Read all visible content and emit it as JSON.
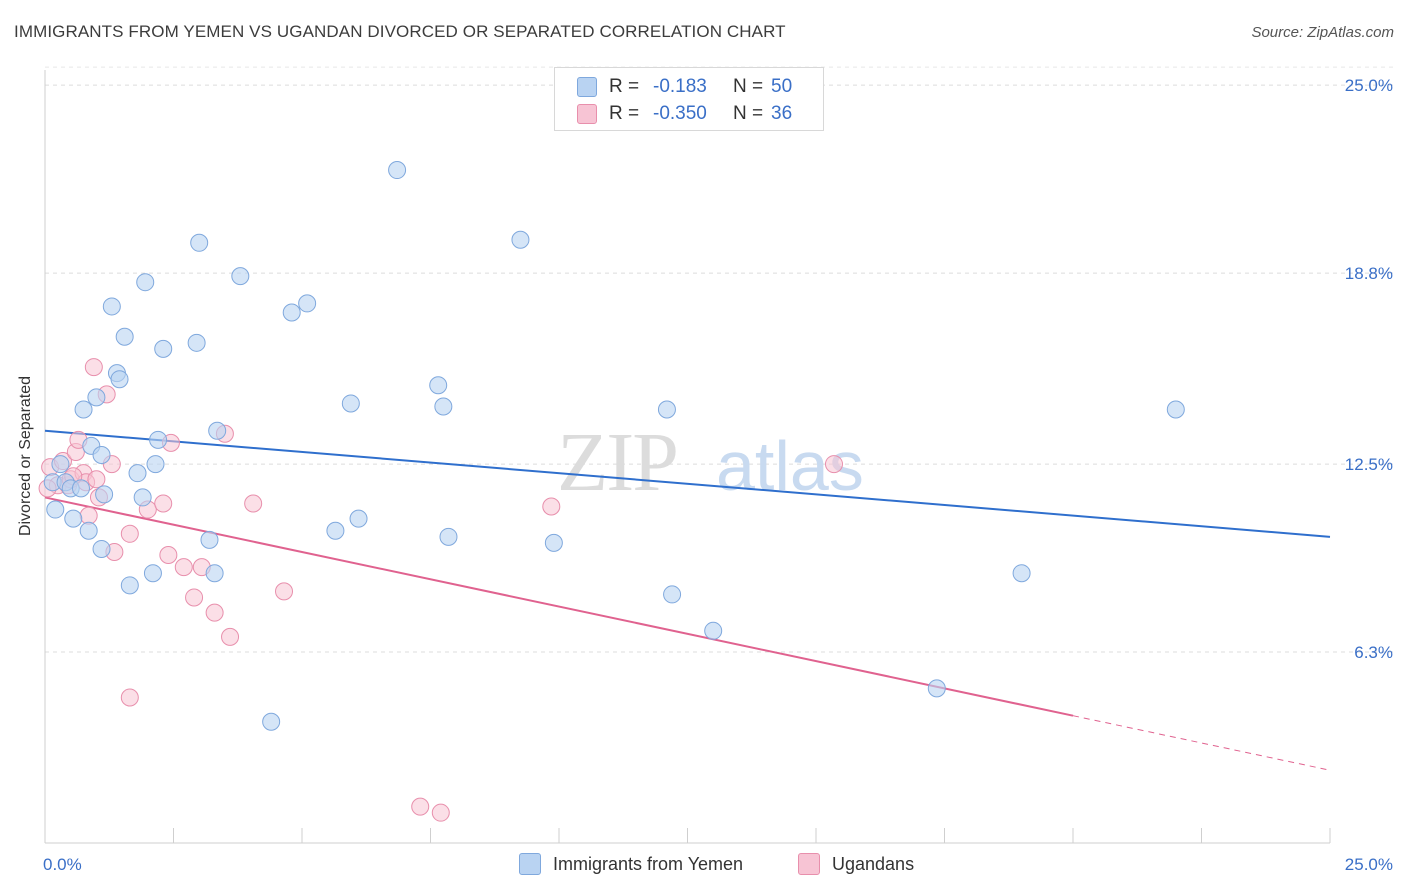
{
  "title": "IMMIGRANTS FROM YEMEN VS UGANDAN DIVORCED OR SEPARATED CORRELATION CHART",
  "source": "Source: ZipAtlas.com",
  "watermark": {
    "zip": "ZIP",
    "atlas": "atlas"
  },
  "colors": {
    "blue_fill": "#b9d3f2",
    "blue_stroke": "#7fa8dd",
    "blue_line": "#2f6fcd",
    "pink_fill": "#f7c4d4",
    "pink_stroke": "#e88fac",
    "pink_line": "#e0628f",
    "tick_text": "#3a6fc7"
  },
  "legend": {
    "rows": [
      {
        "r_label": "R =",
        "r_value": "-0.183",
        "n_label": "N =",
        "n_value": "50"
      },
      {
        "r_label": "R =",
        "r_value": "-0.350",
        "n_label": "N =",
        "n_value": "36"
      }
    ]
  },
  "bottom_legend": [
    "Immigrants from Yemen",
    "Ugandans"
  ],
  "chart_data": {
    "type": "scatter",
    "title": "IMMIGRANTS FROM YEMEN VS UGANDAN DIVORCED OR SEPARATED CORRELATION CHART",
    "xlabel": "",
    "ylabel": "Divorced or Separated",
    "xlim": [
      0,
      25
    ],
    "ylim": [
      0,
      25.5
    ],
    "x_tick_labels": [
      "0.0%",
      "25.0%"
    ],
    "y_ticks": [
      6.3,
      12.5,
      18.8,
      25.0
    ],
    "y_tick_labels": [
      "6.3%",
      "12.5%",
      "18.8%",
      "25.0%"
    ],
    "grid": true,
    "series": [
      {
        "name": "Immigrants from Yemen",
        "R": -0.183,
        "N": 50,
        "trend": {
          "x": [
            0,
            25
          ],
          "y": [
            13.6,
            10.1
          ]
        },
        "points": [
          [
            0.15,
            11.9
          ],
          [
            0.3,
            12.5
          ],
          [
            0.4,
            11.9
          ],
          [
            0.5,
            11.7
          ],
          [
            0.55,
            10.7
          ],
          [
            0.7,
            11.7
          ],
          [
            0.75,
            14.3
          ],
          [
            0.85,
            10.3
          ],
          [
            0.9,
            13.1
          ],
          [
            1.0,
            14.7
          ],
          [
            1.1,
            12.8
          ],
          [
            1.15,
            11.5
          ],
          [
            1.3,
            17.7
          ],
          [
            1.4,
            15.5
          ],
          [
            1.45,
            15.3
          ],
          [
            1.55,
            16.7
          ],
          [
            1.65,
            8.5
          ],
          [
            1.8,
            12.2
          ],
          [
            1.9,
            11.4
          ],
          [
            1.95,
            18.5
          ],
          [
            2.1,
            8.9
          ],
          [
            2.15,
            12.5
          ],
          [
            2.2,
            13.3
          ],
          [
            2.3,
            16.3
          ],
          [
            2.95,
            16.5
          ],
          [
            3.0,
            19.8
          ],
          [
            3.2,
            10.0
          ],
          [
            3.3,
            8.9
          ],
          [
            3.35,
            13.6
          ],
          [
            3.8,
            18.7
          ],
          [
            4.4,
            4.0
          ],
          [
            4.8,
            17.5
          ],
          [
            5.1,
            17.8
          ],
          [
            5.65,
            10.3
          ],
          [
            5.95,
            14.5
          ],
          [
            6.1,
            10.7
          ],
          [
            6.85,
            22.2
          ],
          [
            7.65,
            15.1
          ],
          [
            7.75,
            14.4
          ],
          [
            7.85,
            10.1
          ],
          [
            9.25,
            19.9
          ],
          [
            9.9,
            9.9
          ],
          [
            12.1,
            14.3
          ],
          [
            12.2,
            8.2
          ],
          [
            13.0,
            7.0
          ],
          [
            17.35,
            5.1
          ],
          [
            19.0,
            8.9
          ],
          [
            22.0,
            14.3
          ],
          [
            0.2,
            11.0
          ],
          [
            1.1,
            9.7
          ]
        ]
      },
      {
        "name": "Ugandans",
        "R": -0.35,
        "N": 36,
        "trend": {
          "x": [
            0,
            20
          ],
          "y": [
            11.4,
            4.2
          ]
        },
        "trend_dashed": {
          "x": [
            20,
            25
          ],
          "y": [
            4.2,
            2.4
          ]
        },
        "points": [
          [
            0.1,
            12.4
          ],
          [
            0.25,
            11.8
          ],
          [
            0.35,
            12.6
          ],
          [
            0.45,
            11.8
          ],
          [
            0.5,
            12.0
          ],
          [
            0.6,
            12.9
          ],
          [
            0.65,
            13.3
          ],
          [
            0.75,
            12.2
          ],
          [
            0.8,
            11.9
          ],
          [
            0.85,
            10.8
          ],
          [
            0.95,
            15.7
          ],
          [
            1.0,
            12.0
          ],
          [
            1.05,
            11.4
          ],
          [
            1.2,
            14.8
          ],
          [
            1.3,
            12.5
          ],
          [
            1.35,
            9.6
          ],
          [
            1.65,
            10.2
          ],
          [
            1.65,
            4.8
          ],
          [
            2.0,
            11.0
          ],
          [
            2.3,
            11.2
          ],
          [
            2.4,
            9.5
          ],
          [
            2.45,
            13.2
          ],
          [
            2.7,
            9.1
          ],
          [
            2.9,
            8.1
          ],
          [
            3.05,
            9.1
          ],
          [
            3.3,
            7.6
          ],
          [
            3.5,
            13.5
          ],
          [
            3.6,
            6.8
          ],
          [
            4.05,
            11.2
          ],
          [
            4.65,
            8.3
          ],
          [
            7.3,
            1.2
          ],
          [
            7.7,
            1.0
          ],
          [
            9.85,
            11.1
          ],
          [
            15.35,
            12.5
          ],
          [
            0.05,
            11.7
          ],
          [
            0.55,
            12.1
          ]
        ]
      }
    ]
  }
}
